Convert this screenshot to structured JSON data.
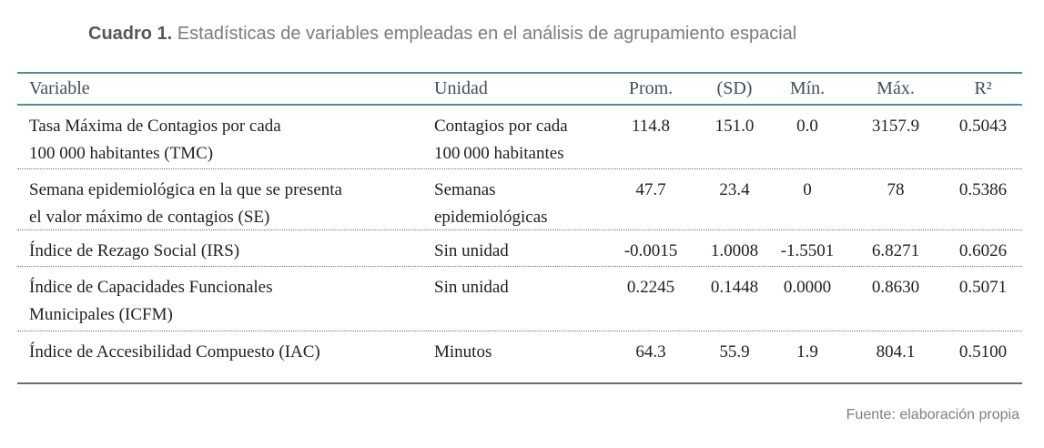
{
  "caption": {
    "label": "Cuadro 1.",
    "text": "Estadísticas de variables empleadas en el análisis de agrupamiento espacial"
  },
  "table": {
    "headers": {
      "variable": "Variable",
      "unidad": "Unidad",
      "prom": "Prom.",
      "sd": "(SD)",
      "min": "Mín.",
      "max": "Máx.",
      "r2": "R²"
    },
    "rows": [
      {
        "variable": [
          "Tasa Máxima de Contagios por cada",
          "100 000 habitantes (TMC)"
        ],
        "unidad": [
          "Contagios por cada",
          "100 000 habitantes"
        ],
        "prom": "114.8",
        "sd": "151.0",
        "min": "0.0",
        "max": "3157.9",
        "r2": "0.5043"
      },
      {
        "variable": [
          "Semana epidemiológica en la que se presenta",
          "el valor máximo de contagios (SE)"
        ],
        "unidad": [
          "Semanas",
          "epidemiológicas"
        ],
        "prom": "47.7",
        "sd": "23.4",
        "min": "0",
        "max": "78",
        "r2": "0.5386"
      },
      {
        "variable": [
          "Índice de Rezago Social (IRS)"
        ],
        "unidad": [
          "Sin unidad"
        ],
        "prom": "-0.0015",
        "sd": "1.0008",
        "min": "-1.5501",
        "max": "6.8271",
        "r2": "0.6026"
      },
      {
        "variable": [
          "Índice de Capacidades Funcionales",
          "Municipales (ICFM)"
        ],
        "unidad": [
          "Sin unidad"
        ],
        "prom": "0.2245",
        "sd": "0.1448",
        "min": "0.0000",
        "max": "0.8630",
        "r2": "0.5071"
      },
      {
        "variable": [
          "Índice de Accesibilidad Compuesto (IAC)"
        ],
        "unidad": [
          "Minutos"
        ],
        "prom": "64.3",
        "sd": "55.9",
        "min": "1.9",
        "max": "804.1",
        "r2": "0.5100"
      }
    ]
  },
  "footer": {
    "source": "Fuente: elaboración propia"
  },
  "colors": {
    "accent_teal": "#4a9196",
    "header_text": "#3f4e57",
    "body_text": "#1f1f1f",
    "caption_label": "#565759",
    "caption_text": "#7b7c7f",
    "bottom_rule": "#6e6e6e",
    "muted_gray": "#7e7f81"
  }
}
